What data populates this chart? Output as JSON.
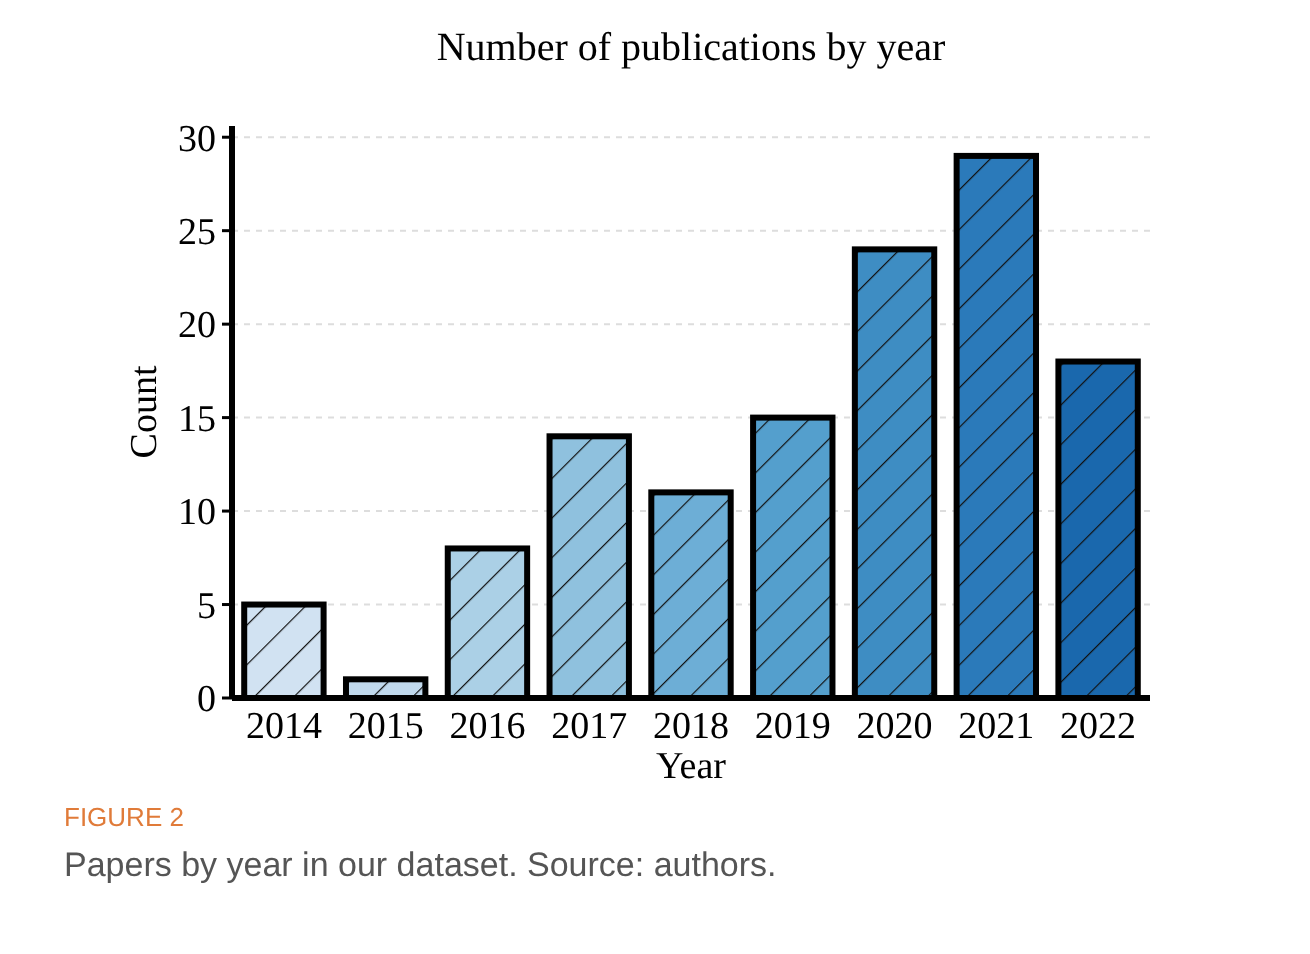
{
  "chart_data": {
    "type": "bar",
    "title": "Number of publications by year",
    "xlabel": "Year",
    "ylabel": "Count",
    "categories": [
      "2014",
      "2015",
      "2016",
      "2017",
      "2018",
      "2019",
      "2020",
      "2021",
      "2022"
    ],
    "values": [
      5,
      1,
      8,
      14,
      11,
      15,
      24,
      29,
      18
    ],
    "colors": [
      "#d1e2f2",
      "#c1d9ed",
      "#abd0e6",
      "#8fc1de",
      "#6daed6",
      "#549fcd",
      "#3e8dc3",
      "#2b7aba",
      "#1a68ad"
    ],
    "ylim": [
      0,
      30.6
    ],
    "yticks": [
      0,
      5,
      10,
      15,
      20,
      25,
      30
    ],
    "grid": "y",
    "annotations": [
      "FIGURE 2",
      "Papers by year in our dataset. Source: authors."
    ]
  }
}
